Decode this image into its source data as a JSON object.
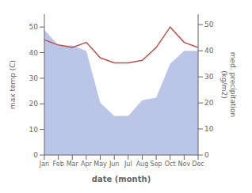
{
  "chart_data": {
    "type": "line",
    "categories": [
      "Jan",
      "Feb",
      "Mar",
      "Apr",
      "May",
      "Jun",
      "Jul",
      "Aug",
      "Sep",
      "Oct",
      "Nov",
      "Dec"
    ],
    "series": [
      {
        "type": "area",
        "axis": "y2",
        "color": "#bbc5e8",
        "values": [
          48,
          42,
          42,
          40,
          20,
          15,
          15,
          21,
          22,
          35,
          40,
          40
        ]
      },
      {
        "type": "line",
        "axis": "y",
        "color": "#c0504d",
        "values": [
          45,
          43,
          42,
          44,
          38,
          36,
          36,
          37,
          42,
          50,
          44,
          42
        ]
      }
    ],
    "xlabel": "date (month)",
    "ylabel": "max temp (C)",
    "y2label": "med. precipitation\n(kg/m2)",
    "ylim": [
      0,
      55
    ],
    "yticks": [
      0,
      10,
      20,
      30,
      40,
      50
    ],
    "y2lim": [
      0,
      54
    ],
    "y2ticks": [
      0,
      10,
      20,
      30,
      40,
      50
    ],
    "grid": false
  }
}
